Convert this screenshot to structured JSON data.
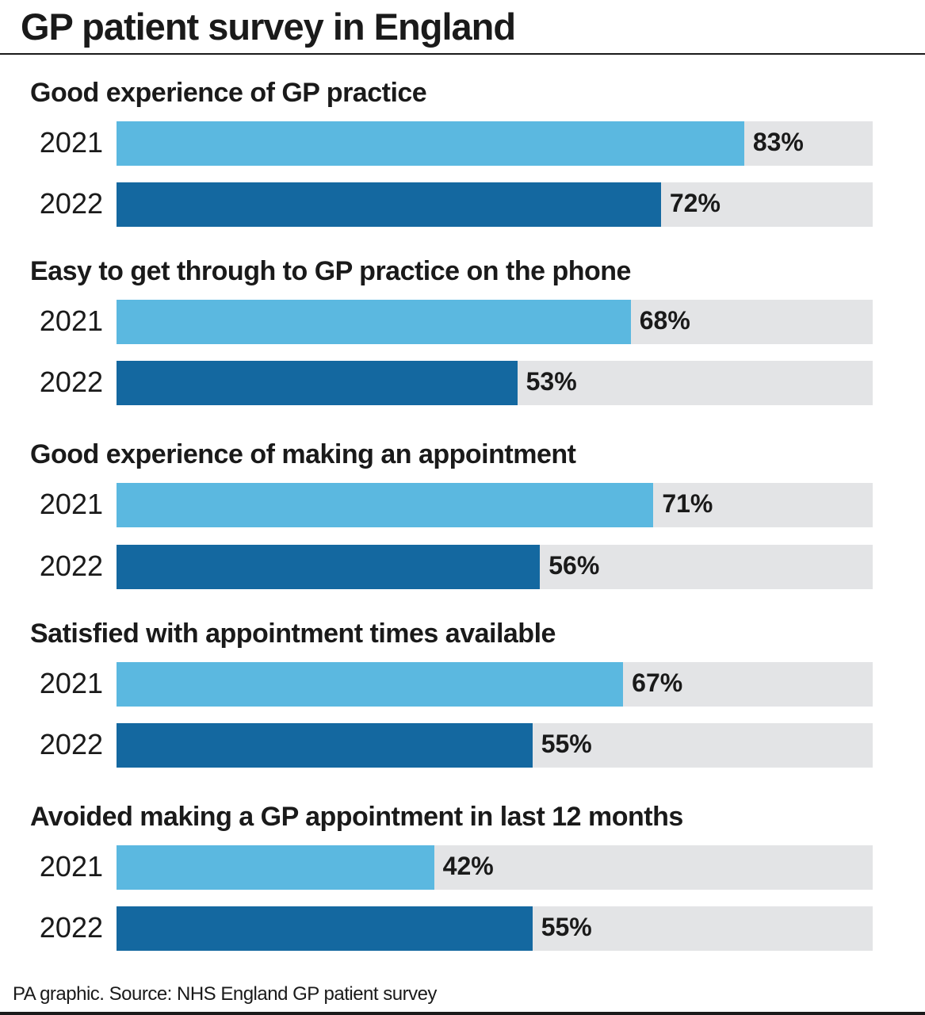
{
  "title": "GP patient survey in England",
  "source": "PA graphic. Source: NHS England GP patient survey",
  "colors": {
    "2021": "#5bb8e0",
    "2022": "#1468a0",
    "track": "#e3e4e6"
  },
  "chart_data": {
    "type": "bar",
    "orientation": "horizontal",
    "xlim": [
      0,
      100
    ],
    "unit": "%",
    "grid": false,
    "groups": [
      {
        "title": "Good experience of GP practice",
        "bars": [
          {
            "year": "2021",
            "value": 83,
            "label": "83%"
          },
          {
            "year": "2022",
            "value": 72,
            "label": "72%"
          }
        ]
      },
      {
        "title": "Easy to get through to GP practice on the phone",
        "bars": [
          {
            "year": "2021",
            "value": 68,
            "label": "68%"
          },
          {
            "year": "2022",
            "value": 53,
            "label": "53%"
          }
        ]
      },
      {
        "title": "Good experience of making an appointment",
        "bars": [
          {
            "year": "2021",
            "value": 71,
            "label": "71%"
          },
          {
            "year": "2022",
            "value": 56,
            "label": "56%"
          }
        ]
      },
      {
        "title": "Satisfied with appointment times available",
        "bars": [
          {
            "year": "2021",
            "value": 67,
            "label": "67%"
          },
          {
            "year": "2022",
            "value": 55,
            "label": "55%"
          }
        ]
      },
      {
        "title": "Avoided making a GP appointment in last 12 months",
        "bars": [
          {
            "year": "2021",
            "value": 42,
            "label": "42%"
          },
          {
            "year": "2022",
            "value": 55,
            "label": "55%"
          }
        ]
      }
    ]
  }
}
